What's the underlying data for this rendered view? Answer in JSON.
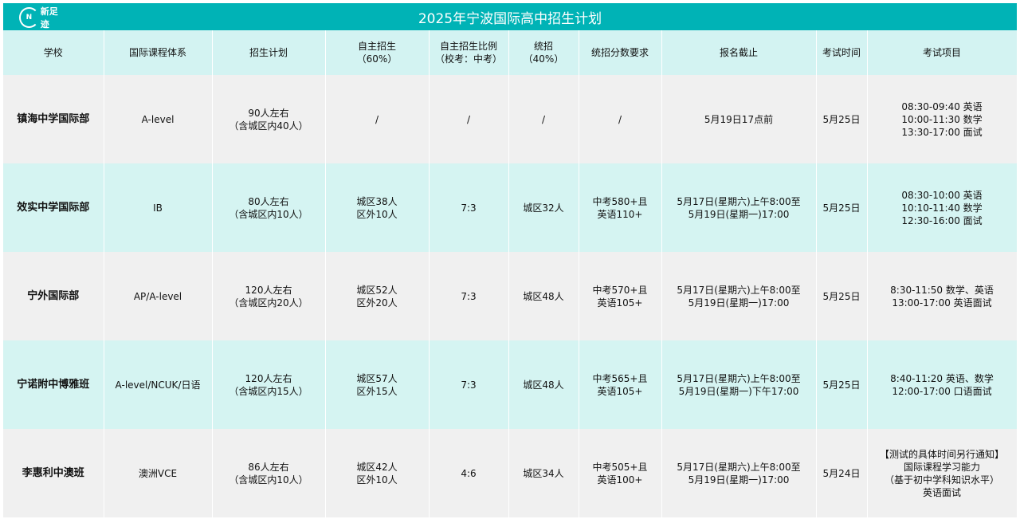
{
  "title": "2025年宁波国际高中招生计划",
  "logo_text": "新足迹",
  "headers": [
    "学校",
    "国际课程体系",
    "招生计划",
    "自主招生\n（60%）",
    "自主招生比例\n（校考：中考）",
    "统招\n（40%）",
    "统招分数要求",
    "报名截止",
    "考试时间",
    "考试项目"
  ],
  "rows": [
    [
      "镇海中学国际部",
      "A-level",
      "90人左右\n（含城区内40人）",
      "/",
      "/",
      "/",
      "/",
      "5月19日17点前",
      "5月25日",
      "08:30-09:40 英语\n10:00-11:30 数学\n13:30-17:00 面试"
    ],
    [
      "效实中学国际部",
      "IB",
      "80人左右\n（含城区内10人）",
      "城区38人\n区外10人",
      "7:3",
      "城区32人",
      "中考580+且\n英语110+",
      "5月17日(星期六)上午8:00至\n5月19日(星期一)17:00",
      "5月25日",
      "08:30-10:00 英语\n10:10-11:40 数学\n12:30-16:00 面试"
    ],
    [
      "宁外国际部",
      "AP/A-level",
      "120人左右\n（含城区内20人）",
      "城区52人\n区外20人",
      "7:3",
      "城区48人",
      "中考570+且\n英语105+",
      "5月17日(星期六)上午8:00至\n5月19日(星期一)17:00",
      "5月25日",
      "8:30-11:50  数学、英语\n13:00-17:00  英语面试"
    ],
    [
      "宁诺附中博雅班",
      "A-level/NCUK/日语",
      "120人左右\n（含城区内15人）",
      "城区57人\n区外15人",
      "7:3",
      "城区48人",
      "中考565+且\n英语105+",
      "5月17日(星期六)上午8:00至\n5月19日(星期一)下午17:00",
      "5月25日",
      "8:40-11:20 英语、数学\n12:00-17:00  口语面试"
    ],
    [
      "李惠利中澳班",
      "澳洲VCE",
      "86人左右\n（含城区内10人）",
      "城区42人\n区外10人",
      "4:6",
      "城区34人",
      "中考505+且\n英语100+",
      "5月17日(星期六)上午8:00至\n5月19日(星期一)17:00",
      "5月24日",
      "【测试的具体时间另行通知】\n国际课程学习能力\n（基于初中学科知识水平）\n英语面试"
    ]
  ],
  "colors": {
    "title_bg": "#00b3b6",
    "header_bg": "#d3f3f2",
    "row_gray": "#f0f0f0",
    "row_cyan": "#d5f4f2"
  }
}
